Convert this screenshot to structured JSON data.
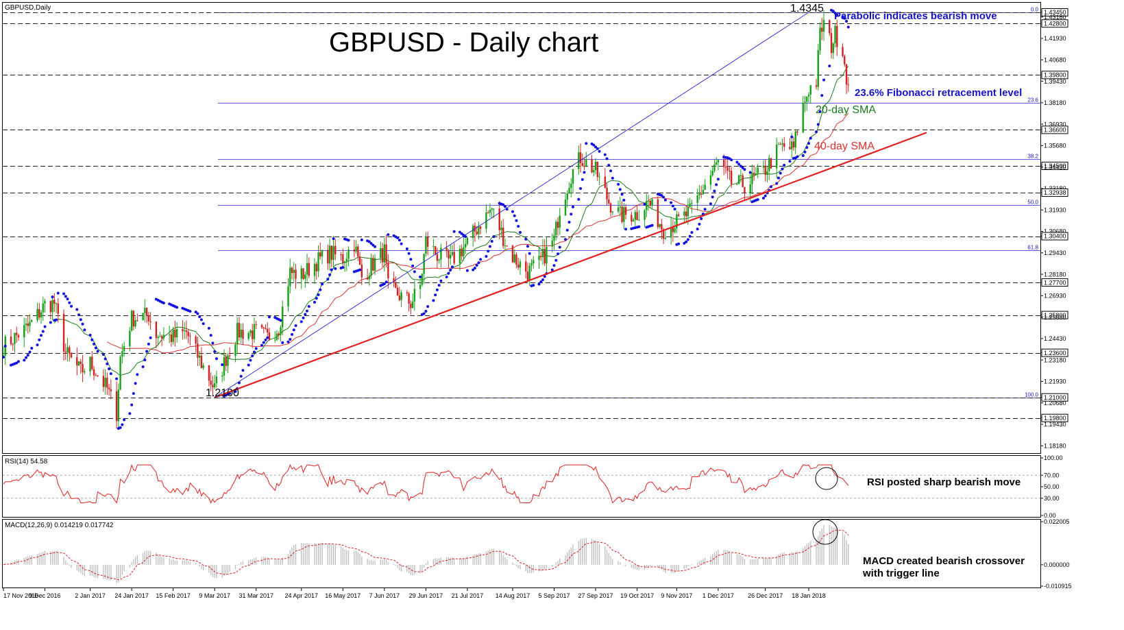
{
  "chart_data": {
    "type": "candlestick",
    "symbol_label": "GBPUSD,Daily",
    "title": "GBPUSD - Daily chart",
    "price_axis": {
      "range": [
        1.1775,
        1.4405
      ],
      "ticks": [
        "1.43450",
        "1.43180",
        "1.42800",
        "1.41930",
        "1.40680",
        "1.39800",
        "1.39430",
        "1.38180",
        "1.36930",
        "1.36600",
        "1.35680",
        "1.34500",
        "1.34430",
        "1.33180",
        "1.32938",
        "1.31930",
        "1.30680",
        "1.30400",
        "1.29430",
        "1.28180",
        "1.27700",
        "1.26930",
        "1.25800",
        "1.25680",
        "1.24430",
        "1.23600",
        "1.23180",
        "1.21930",
        "1.21000",
        "1.20680",
        "1.19800",
        "1.19430",
        "1.18180"
      ],
      "boxed_levels": [
        "1.43450",
        "1.42800",
        "1.39800",
        "1.36600",
        "1.34500",
        "1.32938",
        "1.30400",
        "1.27700",
        "1.25800",
        "1.23600",
        "1.21000",
        "1.19800"
      ]
    },
    "x_axis_dates": [
      "17 Nov 2016",
      "9 Dec 2016",
      "2 Jan 2017",
      "24 Jan 2017",
      "15 Feb 2017",
      "9 Mar 2017",
      "31 Mar 2017",
      "24 Apr 2017",
      "16 May 2017",
      "7 Jun 2017",
      "29 Jun 2017",
      "21 Jul 2017",
      "14 Aug 2017",
      "5 Sep 2017",
      "27 Sep 2017",
      "19 Oct 2017",
      "9 Nov 2017",
      "1 Dec 2017",
      "26 Dec 2017",
      "18 Jan 2018"
    ],
    "horizontal_levels": [
      1.4345,
      1.428,
      1.398,
      1.366,
      1.345,
      1.32938,
      1.304,
      1.277,
      1.258,
      1.236,
      1.21,
      1.198
    ],
    "fibonacci": {
      "levels": [
        {
          "label": "0.0",
          "price": 1.4345
        },
        {
          "label": "23.6",
          "price": 1.3817
        },
        {
          "label": "38.2",
          "price": 1.3491
        },
        {
          "label": "50.0",
          "price": 1.3223
        },
        {
          "label": "61.8",
          "price": 1.2959
        },
        {
          "label": "100.0",
          "price": 1.21
        }
      ]
    },
    "trendline": {
      "from": {
        "date": "9 Mar 2017",
        "price": 1.21
      },
      "to": {
        "date": "26 Jan 2018",
        "price": 1.362
      }
    },
    "channel_line": {
      "from": {
        "date": "9 Mar 2017",
        "price": 1.21
      },
      "to": {
        "date": "18 Jan 2018",
        "price": 1.4345
      }
    },
    "labels": {
      "high": "1.4345",
      "low": "1.2100"
    },
    "annotations": {
      "parabolic": "Parabolic indicates bearish move",
      "fib": "23.6% Fibonacci retracement level",
      "sma20": "20-day SMA",
      "sma40": "40-day SMA",
      "rsi": "RSI posted sharp bearish move",
      "macd_line1": "MACD created bearish crossover",
      "macd_line2": "with trigger line"
    },
    "rsi": {
      "label": "RSI(14) 54.58",
      "ticks": [
        "100.00",
        "70.00",
        "50.00",
        "30.00",
        "0.00"
      ],
      "levels": [
        70,
        30
      ],
      "last": 54.58
    },
    "macd": {
      "label": "MACD(12,26,9) 0.014219 0.017742",
      "ticks": [
        "0.022005",
        "0.000000",
        "-0.010915"
      ],
      "main": 0.014219,
      "signal": 0.017742
    },
    "anchors": [
      [
        "17 Nov 2016",
        1.24
      ],
      [
        "1 Dec 2016",
        1.252
      ],
      [
        "9 Dec 2016",
        1.264
      ],
      [
        "14 Dec 2016",
        1.265
      ],
      [
        "20 Dec 2016",
        1.236
      ],
      [
        "28 Dec 2016",
        1.225
      ],
      [
        "2 Jan 2017",
        1.23
      ],
      [
        "11 Jan 2017",
        1.215
      ],
      [
        "16 Jan 2017",
        1.201
      ],
      [
        "18 Jan 2017",
        1.233
      ],
      [
        "24 Jan 2017",
        1.256
      ],
      [
        "2 Feb 2017",
        1.258
      ],
      [
        "6 Feb 2017",
        1.247
      ],
      [
        "15 Feb 2017",
        1.245
      ],
      [
        "22 Feb 2017",
        1.248
      ],
      [
        "1 Mar 2017",
        1.232
      ],
      [
        "9 Mar 2017",
        1.215
      ],
      [
        "15 Mar 2017",
        1.233
      ],
      [
        "21 Mar 2017",
        1.248
      ],
      [
        "31 Mar 2017",
        1.248
      ],
      [
        "6 Apr 2017",
        1.245
      ],
      [
        "12 Apr 2017",
        1.251
      ],
      [
        "18 Apr 2017",
        1.283
      ],
      [
        "24 Apr 2017",
        1.281
      ],
      [
        "3 May 2017",
        1.29
      ],
      [
        "9 May 2017",
        1.294
      ],
      [
        "16 May 2017",
        1.291
      ],
      [
        "22 May 2017",
        1.3
      ],
      [
        "26 May 2017",
        1.28
      ],
      [
        "1 Jun 2017",
        1.288
      ],
      [
        "7 Jun 2017",
        1.295
      ],
      [
        "9 Jun 2017",
        1.274
      ],
      [
        "21 Jun 2017",
        1.265
      ],
      [
        "26 Jun 2017",
        1.275
      ],
      [
        "29 Jun 2017",
        1.301
      ],
      [
        "5 Jul 2017",
        1.293
      ],
      [
        "12 Jul 2017",
        1.289
      ],
      [
        "21 Jul 2017",
        1.3
      ],
      [
        "28 Jul 2017",
        1.312
      ],
      [
        "3 Aug 2017",
        1.32
      ],
      [
        "11 Aug 2017",
        1.298
      ],
      [
        "14 Aug 2017",
        1.292
      ],
      [
        "22 Aug 2017",
        1.283
      ],
      [
        "28 Aug 2017",
        1.288
      ],
      [
        "5 Sep 2017",
        1.302
      ],
      [
        "8 Sep 2017",
        1.32
      ],
      [
        "14 Sep 2017",
        1.34
      ],
      [
        "19 Sep 2017",
        1.35
      ],
      [
        "27 Sep 2017",
        1.342
      ],
      [
        "4 Oct 2017",
        1.324
      ],
      [
        "10 Oct 2017",
        1.316
      ],
      [
        "19 Oct 2017",
        1.317
      ],
      [
        "25 Oct 2017",
        1.324
      ],
      [
        "2 Nov 2017",
        1.308
      ],
      [
        "9 Nov 2017",
        1.312
      ],
      [
        "16 Nov 2017",
        1.318
      ],
      [
        "24 Nov 2017",
        1.334
      ],
      [
        "1 Dec 2017",
        1.347
      ],
      [
        "8 Dec 2017",
        1.335
      ],
      [
        "15 Dec 2017",
        1.334
      ],
      [
        "21 Dec 2017",
        1.338
      ],
      [
        "26 Dec 2017",
        1.343
      ],
      [
        "3 Jan 2018",
        1.356
      ],
      [
        "10 Jan 2018",
        1.355
      ],
      [
        "13 Jan 2018",
        1.373
      ],
      [
        "18 Jan 2018",
        1.39
      ],
      [
        "22 Jan 2018",
        1.394
      ],
      [
        "24 Jan 2018",
        1.422
      ],
      [
        "26 Jan 2018",
        1.428
      ],
      [
        "30 Jan 2018",
        1.415
      ],
      [
        "1 Feb 2018",
        1.422
      ],
      [
        "5 Feb 2018",
        1.413
      ],
      [
        "8 Feb 2018",
        1.39
      ]
    ]
  }
}
